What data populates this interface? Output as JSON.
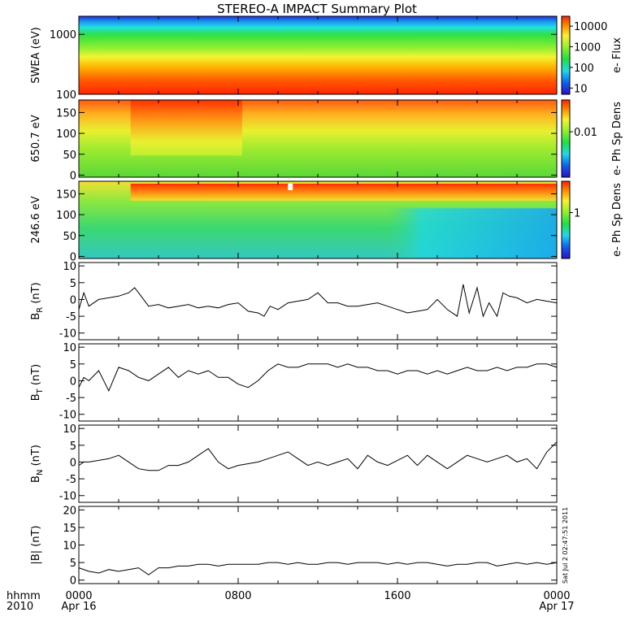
{
  "title": "STEREO-A IMPACT Summary Plot",
  "stamp": "Sat Jul  2 02:47:51 2011",
  "x_axis": {
    "row1_label": "hhmm",
    "row2_label": "2010",
    "ticks": [
      {
        "t": 0,
        "top": "0000",
        "bottom": "Apr 16"
      },
      {
        "t": 8,
        "top": "0800",
        "bottom": ""
      },
      {
        "t": 16,
        "top": "1600",
        "bottom": ""
      },
      {
        "t": 24,
        "top": "0000",
        "bottom": "Apr 17"
      }
    ]
  },
  "chart_data": [
    {
      "type": "heatmap",
      "ylabel": "SWEA (eV)",
      "yscale": "log",
      "ylim": [
        100,
        2000
      ],
      "yticks": [
        "1000",
        "100"
      ],
      "ytick_values": [
        1000,
        100
      ],
      "colorbar": {
        "label": "e- Flux",
        "scale": "log",
        "ticks": [
          "10000",
          "1000",
          "100",
          "10"
        ],
        "tick_values": [
          10000,
          1000,
          100,
          10
        ],
        "range": [
          5,
          30000
        ]
      }
    },
    {
      "type": "heatmap",
      "ylabel": "650.7 eV",
      "ylim": [
        -5,
        180
      ],
      "yticks": [
        "150",
        "100",
        "50",
        "0"
      ],
      "ytick_values": [
        150,
        100,
        50,
        0
      ],
      "colorbar": {
        "label": "e- Ph Sp Dens",
        "scale": "log",
        "ticks": [
          "0.01"
        ],
        "tick_values": [
          0.01
        ],
        "range": [
          0.001,
          0.05
        ]
      }
    },
    {
      "type": "heatmap",
      "ylabel": "246.6 eV",
      "ylim": [
        -5,
        180
      ],
      "yticks": [
        "150",
        "100",
        "50",
        "0"
      ],
      "ytick_values": [
        150,
        100,
        50,
        0
      ],
      "colorbar": {
        "label": "e- Ph Sp Dens",
        "scale": "log",
        "ticks": [
          "1"
        ],
        "tick_values": [
          1
        ],
        "range": [
          0.2,
          3
        ]
      }
    },
    {
      "type": "line",
      "ylabel": "B_R (nT)",
      "ylabel_main": "B",
      "ylabel_sub": "R",
      "ylabel_unit": " (nT)",
      "ylim": [
        -12,
        11
      ],
      "yticks": [
        "10",
        "5",
        "0",
        "-5",
        "-10"
      ],
      "ytick_values": [
        10,
        5,
        0,
        -5,
        -10
      ],
      "x": [
        0.0,
        0.25,
        0.5,
        1.0,
        1.5,
        2.0,
        2.5,
        2.8,
        3.0,
        3.5,
        4.0,
        4.5,
        5.0,
        5.5,
        6.0,
        6.5,
        7.0,
        7.5,
        8.0,
        8.5,
        9.0,
        9.3,
        9.6,
        10.0,
        10.5,
        11.0,
        11.5,
        12.0,
        12.5,
        13.0,
        13.5,
        14.0,
        14.5,
        15.0,
        15.5,
        16.0,
        16.5,
        17.0,
        17.5,
        18.0,
        18.5,
        19.0,
        19.3,
        19.6,
        20.0,
        20.3,
        20.6,
        21.0,
        21.3,
        21.6,
        22.0,
        22.5,
        23.0,
        23.5,
        24.0
      ],
      "y": [
        -3,
        2,
        -2,
        0,
        0.5,
        1,
        2,
        3.5,
        2,
        -2,
        -1.5,
        -2.5,
        -2,
        -1.5,
        -2.5,
        -2,
        -2.5,
        -1.5,
        -1,
        -3.5,
        -4,
        -5,
        -2,
        -3,
        -1,
        -0.5,
        0,
        2,
        -1,
        -1,
        -2,
        -2,
        -1.5,
        -1,
        -2,
        -3,
        -4,
        -3.5,
        -3,
        0,
        -3,
        -5,
        4.5,
        -4,
        3.5,
        -5,
        -1,
        -5,
        2,
        1,
        0.5,
        -1,
        0,
        -0.5,
        -1
      ]
    },
    {
      "type": "line",
      "ylabel": "B_T (nT)",
      "ylabel_main": "B",
      "ylabel_sub": "T",
      "ylabel_unit": " (nT)",
      "ylim": [
        -12,
        11
      ],
      "yticks": [
        "10",
        "5",
        "0",
        "-5",
        "-10"
      ],
      "ytick_values": [
        10,
        5,
        0,
        -5,
        -10
      ],
      "x": [
        0.0,
        0.25,
        0.5,
        1.0,
        1.5,
        2.0,
        2.5,
        3.0,
        3.5,
        4.0,
        4.5,
        5.0,
        5.5,
        6.0,
        6.5,
        7.0,
        7.5,
        8.0,
        8.5,
        9.0,
        9.5,
        10.0,
        10.5,
        11.0,
        11.5,
        12.0,
        12.5,
        13.0,
        13.5,
        14.0,
        14.5,
        15.0,
        15.5,
        16.0,
        16.5,
        17.0,
        17.5,
        18.0,
        18.5,
        19.0,
        19.5,
        20.0,
        20.5,
        21.0,
        21.5,
        22.0,
        22.5,
        23.0,
        23.5,
        24.0
      ],
      "y": [
        -2,
        1,
        0,
        3,
        -3,
        4,
        3,
        1,
        0,
        2,
        4,
        1,
        3,
        2,
        3,
        1,
        1,
        -1,
        -2,
        0,
        3,
        5,
        4,
        4,
        5,
        5,
        5,
        4,
        5,
        4,
        4,
        3,
        3,
        2,
        3,
        3,
        2,
        3,
        2,
        3,
        4,
        3,
        3,
        4,
        3,
        4,
        4,
        5,
        5,
        4
      ]
    },
    {
      "type": "line",
      "ylabel": "B_N (nT)",
      "ylabel_main": "B",
      "ylabel_sub": "N",
      "ylabel_unit": " (nT)",
      "ylim": [
        -12,
        11
      ],
      "yticks": [
        "10",
        "5",
        "0",
        "-5",
        "-10"
      ],
      "ytick_values": [
        10,
        5,
        0,
        -5,
        -10
      ],
      "x": [
        0.0,
        0.25,
        0.5,
        1.0,
        1.5,
        2.0,
        2.5,
        3.0,
        3.5,
        4.0,
        4.5,
        5.0,
        5.5,
        6.0,
        6.5,
        7.0,
        7.5,
        8.0,
        8.5,
        9.0,
        9.5,
        10.0,
        10.5,
        11.0,
        11.5,
        12.0,
        12.5,
        13.0,
        13.5,
        14.0,
        14.5,
        15.0,
        15.5,
        16.0,
        16.5,
        17.0,
        17.5,
        18.0,
        18.5,
        19.0,
        19.5,
        20.0,
        20.5,
        21.0,
        21.5,
        22.0,
        22.5,
        23.0,
        23.5,
        24.0
      ],
      "y": [
        -1,
        0,
        0,
        0.5,
        1,
        2,
        0,
        -2,
        -2.5,
        -2.5,
        -1,
        -1,
        0,
        2,
        4,
        0,
        -2,
        -1,
        -0.5,
        0,
        1,
        2,
        3,
        1,
        -1,
        0,
        -1,
        0,
        1,
        -2,
        2,
        0,
        -1,
        0.5,
        2,
        -1,
        2,
        0,
        -2,
        0,
        2,
        1,
        0,
        1,
        2,
        0,
        1,
        -2,
        3,
        6
      ]
    },
    {
      "type": "line",
      "ylabel": "|B| (nT)",
      "ylim": [
        -1,
        21
      ],
      "yticks": [
        "20",
        "15",
        "10",
        "5",
        "0"
      ],
      "ytick_values": [
        20,
        15,
        10,
        5,
        0
      ],
      "x": [
        0.0,
        0.5,
        1.0,
        1.5,
        2.0,
        2.5,
        3.0,
        3.5,
        4.0,
        4.5,
        5.0,
        5.5,
        6.0,
        6.5,
        7.0,
        7.5,
        8.0,
        8.5,
        9.0,
        9.5,
        10.0,
        10.5,
        11.0,
        11.5,
        12.0,
        12.5,
        13.0,
        13.5,
        14.0,
        14.5,
        15.0,
        15.5,
        16.0,
        16.5,
        17.0,
        17.5,
        18.0,
        18.5,
        19.0,
        19.5,
        20.0,
        20.5,
        21.0,
        21.5,
        22.0,
        22.5,
        23.0,
        23.5,
        24.0
      ],
      "y": [
        3.5,
        2.5,
        2.0,
        3.0,
        2.5,
        3.0,
        3.5,
        1.5,
        3.5,
        3.5,
        4.0,
        4.0,
        4.5,
        4.5,
        4.0,
        4.5,
        4.5,
        4.5,
        4.5,
        5.0,
        5.0,
        4.5,
        5.0,
        4.5,
        4.5,
        5.0,
        5.0,
        4.5,
        5.0,
        5.0,
        5.0,
        4.5,
        5.0,
        4.5,
        5.0,
        5.0,
        4.5,
        4.0,
        4.5,
        4.5,
        5.0,
        5.0,
        4.0,
        4.5,
        5.0,
        4.5,
        5.0,
        4.5,
        5.0
      ]
    }
  ],
  "colors": {
    "axis": "#000000",
    "line": "#000000",
    "background": "#ffffff"
  }
}
